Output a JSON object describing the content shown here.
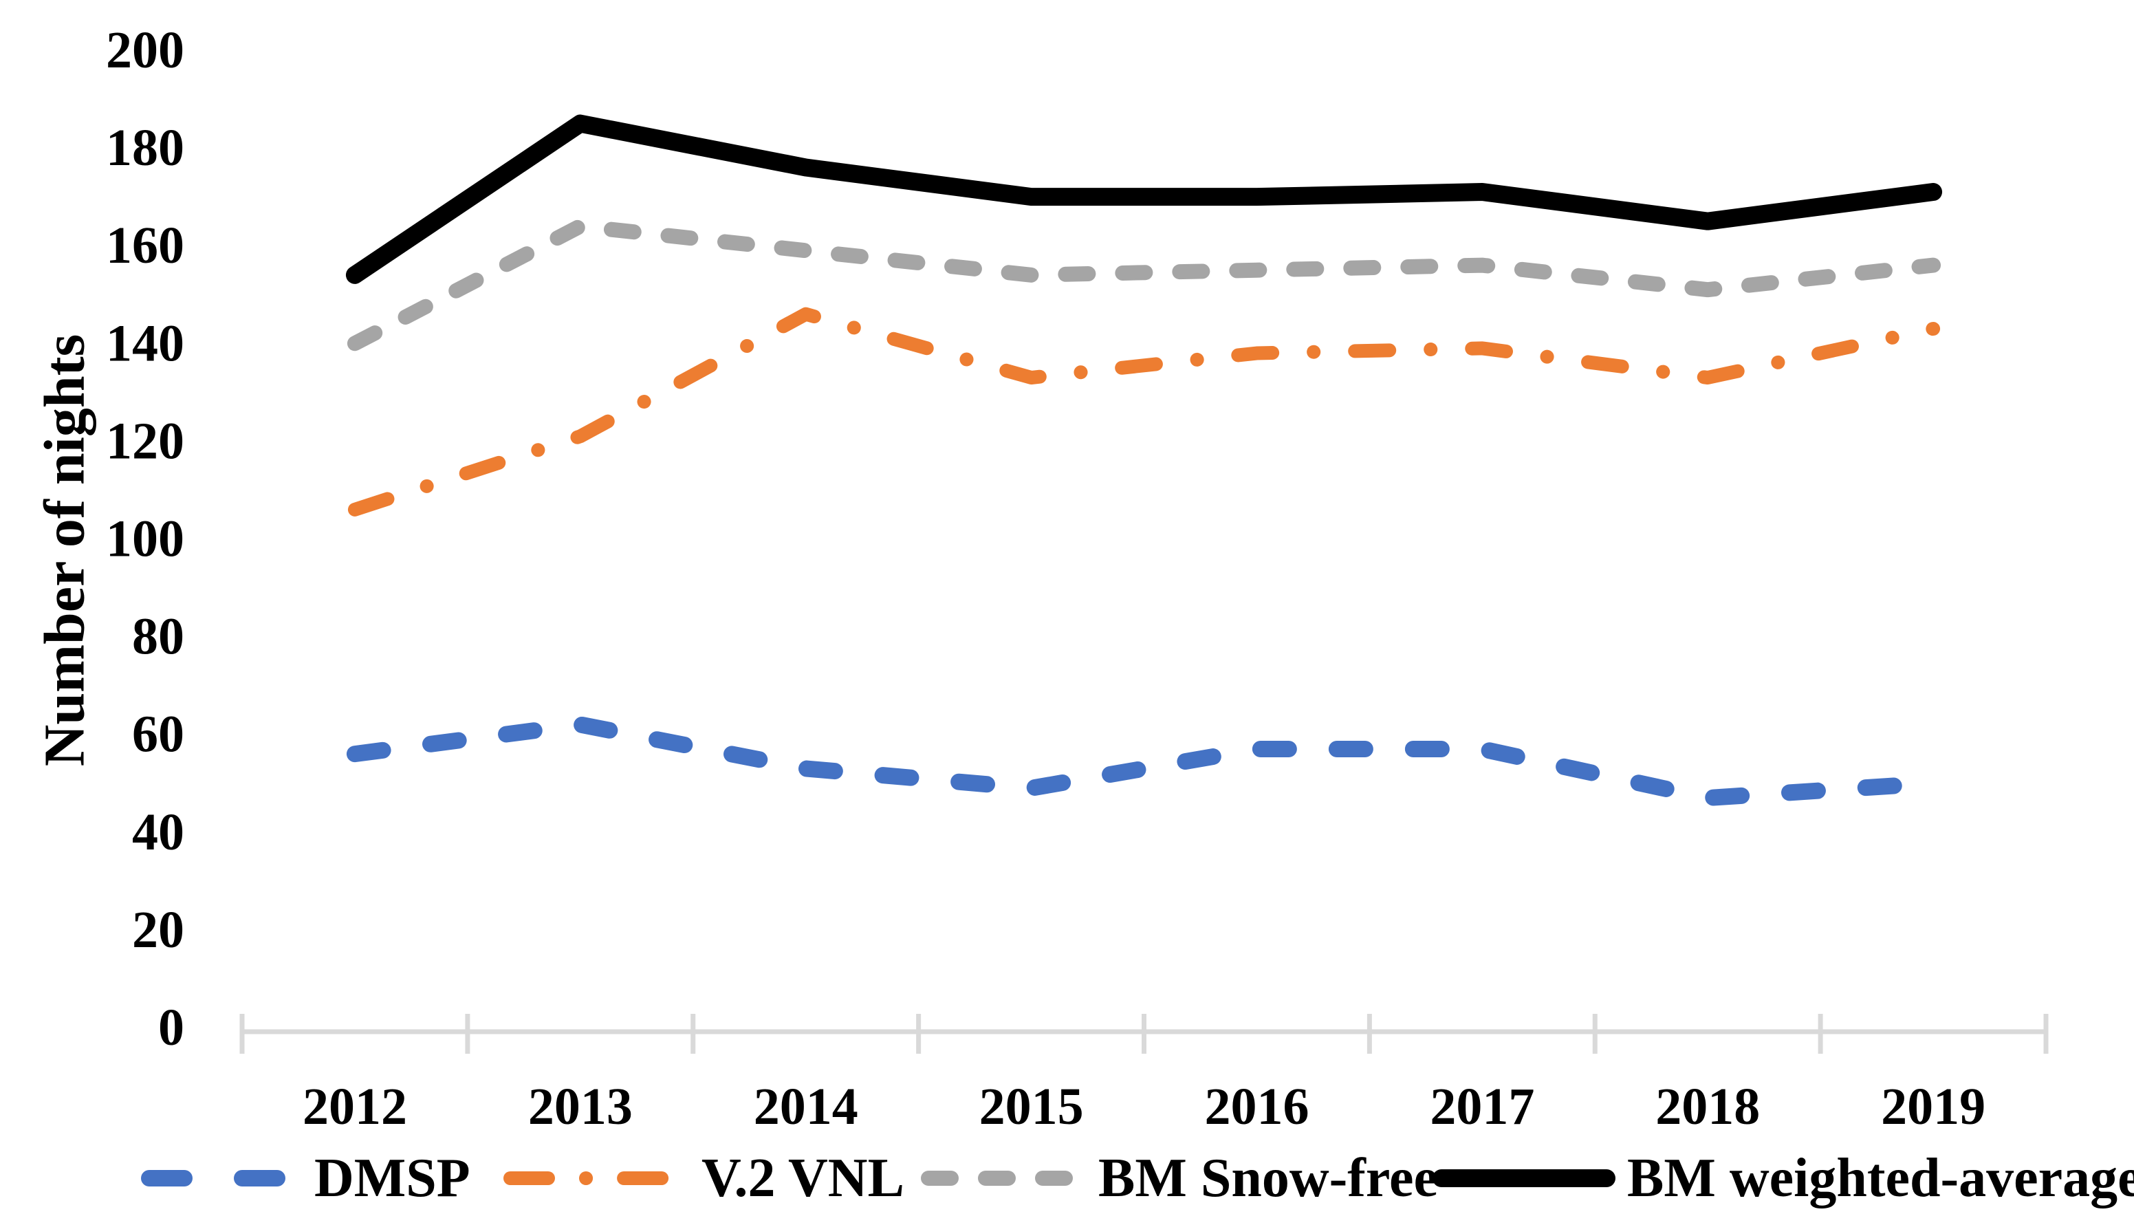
{
  "chart_data": {
    "type": "line",
    "title": "",
    "xlabel": "",
    "ylabel": "Number of nights",
    "categories": [
      "2012",
      "2013",
      "2014",
      "2015",
      "2016",
      "2017",
      "2018",
      "2019"
    ],
    "y_ticks": [
      "0",
      "20",
      "40",
      "60",
      "80",
      "100",
      "120",
      "140",
      "160",
      "180",
      "200"
    ],
    "ylim": [
      0,
      200
    ],
    "y_tick_step": 20,
    "grid": "off",
    "legend_position": "bottom",
    "axis_color": "#d9d9d9",
    "text_color": "#000000",
    "background_color": "#ffffff",
    "series": [
      {
        "name": "DMSP",
        "color": "#4472c4",
        "style": "dashed",
        "values": [
          56,
          62,
          53,
          49,
          57,
          57,
          47,
          50
        ]
      },
      {
        "name": "V.2 VNL",
        "color": "#ed7d31",
        "style": "dash-dot",
        "values": [
          106,
          121,
          146,
          133,
          138,
          139,
          133,
          143
        ]
      },
      {
        "name": "BM Snow-free",
        "color": "#a5a5a5",
        "style": "dashed",
        "values": [
          140,
          164,
          159,
          154,
          155,
          156,
          151,
          156
        ]
      },
      {
        "name": "BM weighted-average",
        "color": "#000000",
        "style": "solid",
        "values": [
          154,
          185,
          176,
          170,
          170,
          171,
          165,
          171
        ]
      }
    ]
  }
}
